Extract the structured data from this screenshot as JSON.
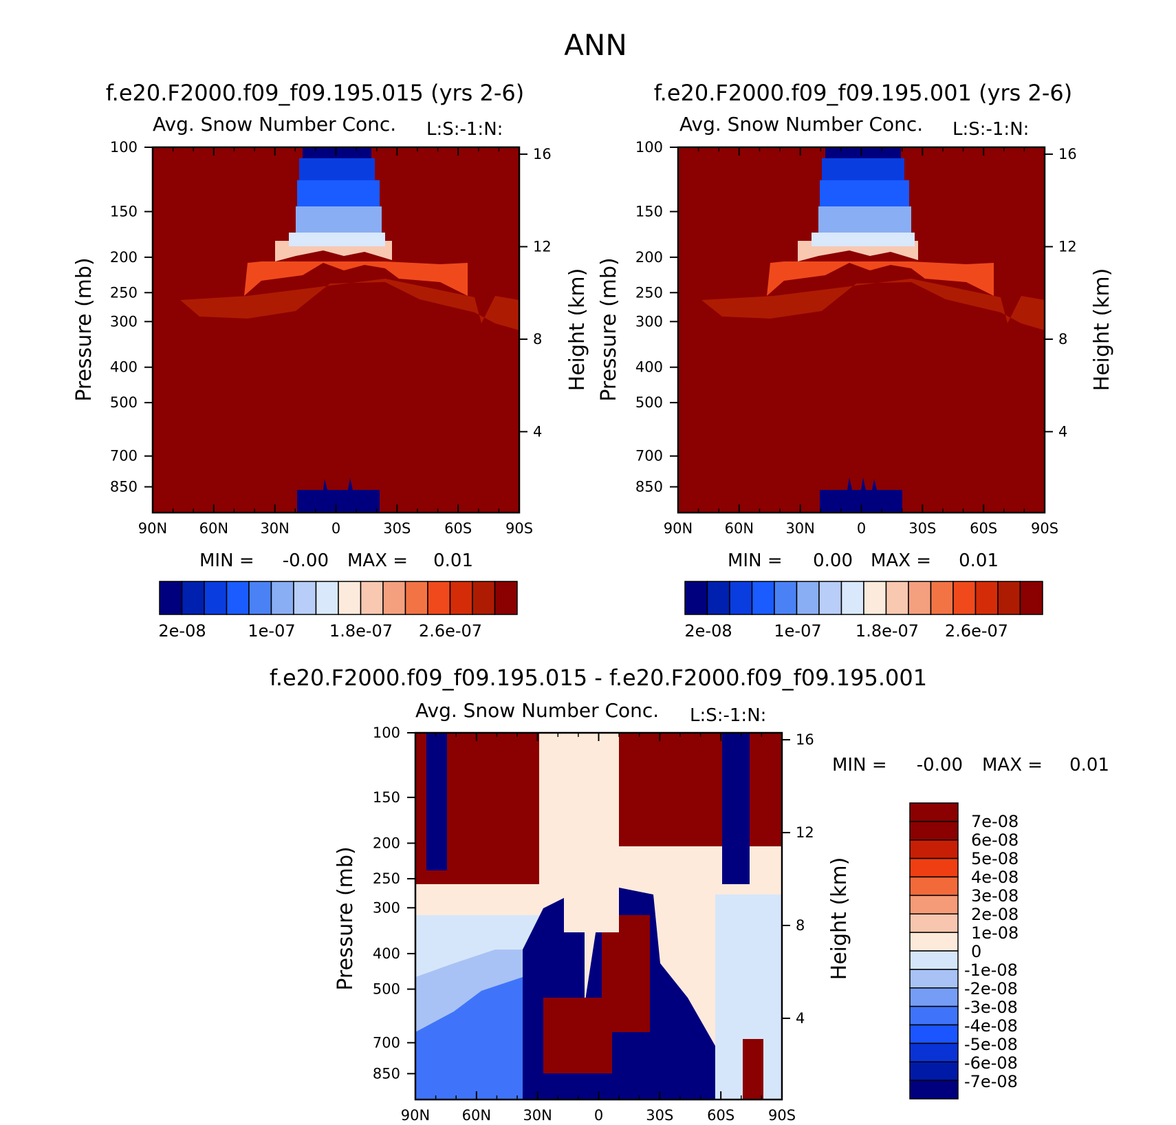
{
  "title": "ANN",
  "colors": {
    "absolute_palette": [
      "#00007f",
      "#0020b0",
      "#0a3de0",
      "#1a5cff",
      "#4a82f5",
      "#8aaef3",
      "#b8cdf7",
      "#d9e8fb",
      "#fcebdc",
      "#f8c8b1",
      "#f4a07f",
      "#f27445",
      "#f04a1c",
      "#d42c08",
      "#ae1b03",
      "#8b0000"
    ],
    "diff_palette": [
      "#00007f",
      "#001aa8",
      "#0a33d6",
      "#1a55ff",
      "#3f74fa",
      "#769df5",
      "#a8c2f5",
      "#d6e6fa",
      "#fdeadb",
      "#f8c6ae",
      "#f59b77",
      "#f26a3a",
      "#ef3f12",
      "#c71f05",
      "#8b0000"
    ]
  },
  "chart_data": [
    {
      "type": "heatmap",
      "name": "model-015",
      "title": "f.e20.F2000.f09_f09.195.015 (yrs 2-6)",
      "subtitle_left": "Avg. Snow Number Conc.",
      "subtitle_right": "L:S:-1:N:",
      "ylabel": "Pressure (mb)",
      "y2label": "Height (km)",
      "xticks": [
        "90N",
        "60N",
        "30N",
        "0",
        "30S",
        "60S",
        "90S"
      ],
      "yticks": [
        100,
        150,
        200,
        250,
        300,
        400,
        500,
        700,
        850
      ],
      "y2ticks": [
        16,
        12,
        8,
        4
      ],
      "ylim": [
        100,
        1000
      ],
      "min_text": "MIN =",
      "min_value": "-0.00",
      "max_text": "MAX =",
      "max_value": "0.01",
      "colorbar_labels": [
        "2e-08",
        "1e-07",
        "1.8e-07",
        "2.6e-07"
      ]
    },
    {
      "type": "heatmap",
      "name": "model-001",
      "title": "f.e20.F2000.f09_f09.195.001 (yrs 2-6)",
      "subtitle_left": "Avg. Snow Number Conc.",
      "subtitle_right": "L:S:-1:N:",
      "ylabel": "Pressure (mb)",
      "y2label": "Height (km)",
      "xticks": [
        "90N",
        "60N",
        "30N",
        "0",
        "30S",
        "60S",
        "90S"
      ],
      "yticks": [
        100,
        150,
        200,
        250,
        300,
        400,
        500,
        700,
        850
      ],
      "y2ticks": [
        16,
        12,
        8,
        4
      ],
      "ylim": [
        100,
        1000
      ],
      "min_text": "MIN =",
      "min_value": "0.00",
      "max_text": "MAX =",
      "max_value": "0.01",
      "colorbar_labels": [
        "2e-08",
        "1e-07",
        "1.8e-07",
        "2.6e-07"
      ]
    },
    {
      "type": "heatmap",
      "name": "difference",
      "title": "f.e20.F2000.f09_f09.195.015 - f.e20.F2000.f09_f09.195.001",
      "subtitle_left": "Avg. Snow Number Conc.",
      "subtitle_right": "L:S:-1:N:",
      "ylabel": "Pressure (mb)",
      "y2label": "Height (km)",
      "xticks": [
        "90N",
        "60N",
        "30N",
        "0",
        "30S",
        "60S",
        "90S"
      ],
      "yticks": [
        100,
        150,
        200,
        250,
        300,
        400,
        500,
        700,
        850
      ],
      "y2ticks": [
        16,
        12,
        8,
        4
      ],
      "ylim": [
        100,
        1000
      ],
      "min_text": "MIN =",
      "min_value": "-0.00",
      "max_text": "MAX =",
      "max_value": "0.01",
      "colorbar_labels": [
        "7e-08",
        "6e-08",
        "5e-08",
        "4e-08",
        "3e-08",
        "2e-08",
        "1e-08",
        "0",
        "-1e-08",
        "-2e-08",
        "-3e-08",
        "-4e-08",
        "-5e-08",
        "-6e-08",
        "-7e-08"
      ]
    }
  ]
}
